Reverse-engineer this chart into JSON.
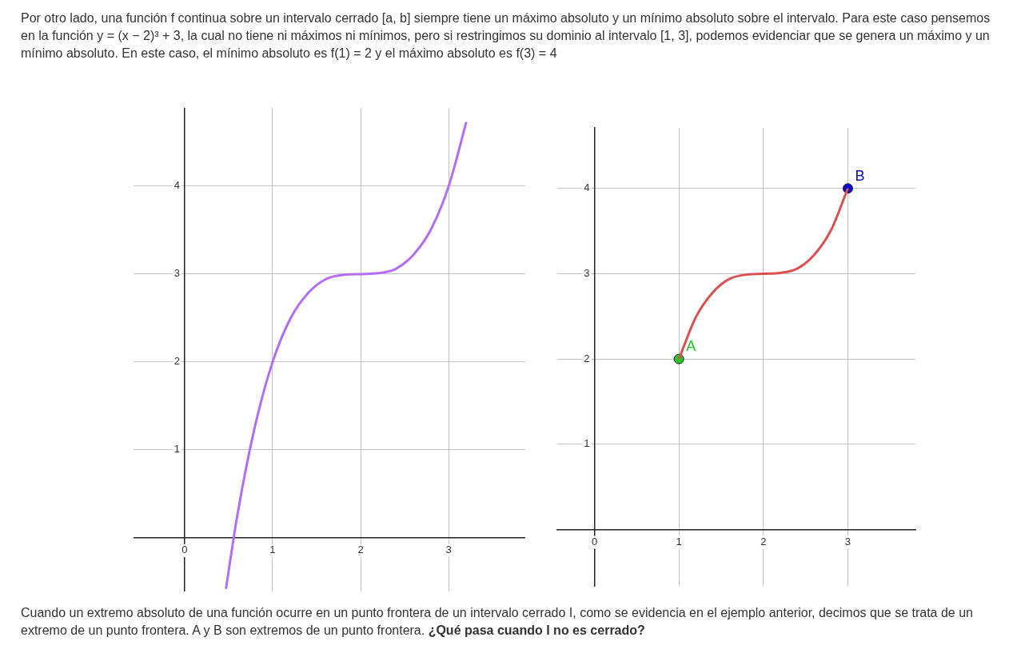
{
  "chart_data": [
    {
      "type": "line",
      "annotations": [
        "Por otro lado, una función f continua sobre un intervalo cerrado [a, b] siempre tiene un máximo absoluto y un mínimo absoluto sobre el intervalo. Para este caso pensemos en la función y = (x − 2)³ + 3, la cual no tiene ni máximos ni mínimos, pero si restringimos su dominio al intervalo [1, 3], podemos evidenciar que se genera un máximo y un mínimo absoluto. En este caso, el mínimo absoluto es f(1) = 2 y el máximo absoluto es f(3) = 4"
      ],
      "series": [
        {
          "color": "#b26ef7",
          "x": [
            0.47,
            0.6,
            0.8,
            1,
            1.2,
            1.4,
            1.6,
            1.8,
            2,
            2.2,
            2.4,
            2.6,
            2.8,
            3,
            3.2
          ],
          "values": [
            -0.58,
            0.26,
            1.27,
            2,
            2.49,
            2.78,
            2.94,
            2.99,
            3,
            3.01,
            3.06,
            3.22,
            3.51,
            4,
            4.73
          ]
        }
      ],
      "xlim": [
        -0.58,
        3.87
      ],
      "ylim": [
        -0.61,
        4.89
      ],
      "xticks": [
        0,
        1,
        2,
        3
      ],
      "yticks": [
        {
          "value": 0,
          "label": null
        },
        1,
        2,
        3,
        4
      ],
      "grid": true
    },
    {
      "type": "line",
      "annotations": [
        "Cuando un extremo absoluto de una función ocurre en un punto frontera de un intervalo cerrado I, como se evidencia en el ejemplo anterior, decimos que se trata de un extremo de un punto frontera. A y B son extremos de un punto frontera.",
        "¿Qué pasa cuando I no es cerrado?"
      ],
      "series": [
        {
          "color": "#db5050",
          "x": [
            1,
            1.2,
            1.4,
            1.6,
            1.8,
            2,
            2.2,
            2.4,
            2.6,
            2.8,
            3
          ],
          "values": [
            2,
            2.49,
            2.78,
            2.94,
            2.99,
            3,
            3.01,
            3.06,
            3.22,
            3.51,
            4
          ]
        },
        {
          "type": "scatter",
          "name": "A",
          "color": "#22c722",
          "x": [
            1
          ],
          "values": [
            2
          ]
        },
        {
          "type": "scatter",
          "name": "B",
          "color": "#0a0acc",
          "x": [
            3
          ],
          "values": [
            4
          ]
        }
      ],
      "xlim": [
        -0.44,
        3.8
      ],
      "ylim": [
        -0.66,
        4.71
      ],
      "xticks": [
        0,
        1,
        2,
        3
      ],
      "yticks": [
        {
          "value": 0,
          "label": null
        },
        1,
        2,
        3,
        4
      ],
      "grid": true
    }
  ]
}
